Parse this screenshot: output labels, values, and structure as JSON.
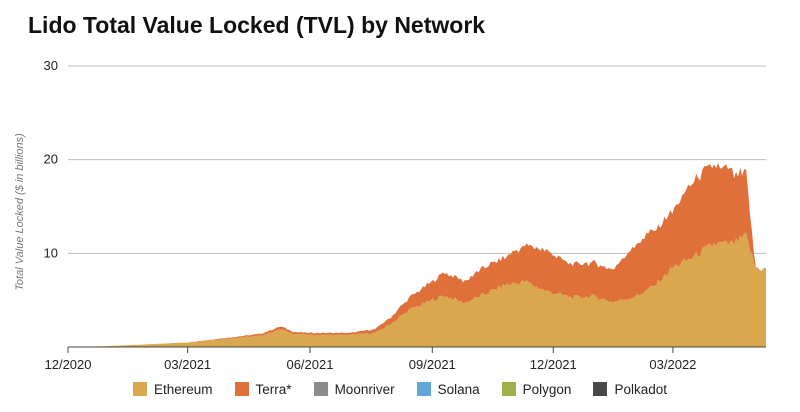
{
  "title": "Lido Total Value Locked (TVL) by Network",
  "chart_data": {
    "type": "area",
    "stacked": true,
    "ylabel": "Total Value Locked ($ in billions)",
    "xlabel": "",
    "ylim": [
      0,
      30
    ],
    "yticks": [
      10,
      20,
      30
    ],
    "grid": true,
    "legend_position": "bottom",
    "x_range": [
      "2020-12-01",
      "2022-05-10"
    ],
    "x_ticks": [
      {
        "label": "12/2020",
        "date": "2020-12-01"
      },
      {
        "label": "03/2021",
        "date": "2021-03-01"
      },
      {
        "label": "06/2021",
        "date": "2021-06-01"
      },
      {
        "label": "09/2021",
        "date": "2021-09-01"
      },
      {
        "label": "12/2021",
        "date": "2021-12-01"
      },
      {
        "label": "03/2022",
        "date": "2022-03-01"
      }
    ],
    "series": [
      {
        "name": "Ethereum",
        "color": "#D9A84E",
        "points": [
          [
            "2020-12-01",
            0.0
          ],
          [
            "2021-01-01",
            0.1
          ],
          [
            "2021-02-01",
            0.3
          ],
          [
            "2021-03-01",
            0.5
          ],
          [
            "2021-04-01",
            0.9
          ],
          [
            "2021-04-25",
            1.2
          ],
          [
            "2021-05-10",
            1.9
          ],
          [
            "2021-05-20",
            1.4
          ],
          [
            "2021-06-01",
            1.3
          ],
          [
            "2021-07-01",
            1.3
          ],
          [
            "2021-07-20",
            1.5
          ],
          [
            "2021-08-01",
            2.5
          ],
          [
            "2021-08-15",
            4.0
          ],
          [
            "2021-09-01",
            5.0
          ],
          [
            "2021-09-10",
            5.5
          ],
          [
            "2021-09-25",
            4.7
          ],
          [
            "2021-10-10",
            5.6
          ],
          [
            "2021-10-25",
            6.6
          ],
          [
            "2021-11-10",
            7.0
          ],
          [
            "2021-11-25",
            6.0
          ],
          [
            "2021-12-01",
            5.8
          ],
          [
            "2021-12-15",
            5.3
          ],
          [
            "2022-01-01",
            5.4
          ],
          [
            "2022-01-15",
            4.8
          ],
          [
            "2022-02-01",
            5.4
          ],
          [
            "2022-02-15",
            6.5
          ],
          [
            "2022-03-01",
            8.5
          ],
          [
            "2022-03-15",
            9.5
          ],
          [
            "2022-04-01",
            11.0
          ],
          [
            "2022-04-15",
            11.0
          ],
          [
            "2022-04-25",
            11.8
          ],
          [
            "2022-05-02",
            8.5
          ],
          [
            "2022-05-10",
            8.3
          ]
        ]
      },
      {
        "name": "Terra*",
        "color": "#E0703A",
        "points": [
          [
            "2020-12-01",
            0.0
          ],
          [
            "2021-01-01",
            0.0
          ],
          [
            "2021-02-01",
            0.0
          ],
          [
            "2021-03-01",
            0.0
          ],
          [
            "2021-04-01",
            0.1
          ],
          [
            "2021-04-25",
            0.2
          ],
          [
            "2021-05-10",
            0.3
          ],
          [
            "2021-05-20",
            0.2
          ],
          [
            "2021-06-01",
            0.2
          ],
          [
            "2021-07-01",
            0.2
          ],
          [
            "2021-07-20",
            0.4
          ],
          [
            "2021-08-01",
            0.7
          ],
          [
            "2021-08-15",
            1.3
          ],
          [
            "2021-09-01",
            2.0
          ],
          [
            "2021-09-10",
            2.5
          ],
          [
            "2021-09-25",
            2.3
          ],
          [
            "2021-10-10",
            2.9
          ],
          [
            "2021-10-25",
            2.9
          ],
          [
            "2021-11-10",
            3.8
          ],
          [
            "2021-11-25",
            4.3
          ],
          [
            "2021-12-01",
            4.0
          ],
          [
            "2021-12-15",
            3.5
          ],
          [
            "2022-01-01",
            3.6
          ],
          [
            "2022-01-15",
            3.4
          ],
          [
            "2022-02-01",
            5.6
          ],
          [
            "2022-02-15",
            6.0
          ],
          [
            "2022-03-01",
            6.0
          ],
          [
            "2022-03-15",
            8.0
          ],
          [
            "2022-04-01",
            8.5
          ],
          [
            "2022-04-15",
            7.5
          ],
          [
            "2022-04-25",
            6.7
          ],
          [
            "2022-05-02",
            0.0
          ],
          [
            "2022-05-10",
            0.0
          ]
        ]
      },
      {
        "name": "Moonriver",
        "color": "#8C8C8C",
        "points": []
      },
      {
        "name": "Solana",
        "color": "#5FA8D9",
        "points": []
      },
      {
        "name": "Polygon",
        "color": "#9FB14A",
        "points": []
      },
      {
        "name": "Polkadot",
        "color": "#474747",
        "points": []
      }
    ]
  }
}
